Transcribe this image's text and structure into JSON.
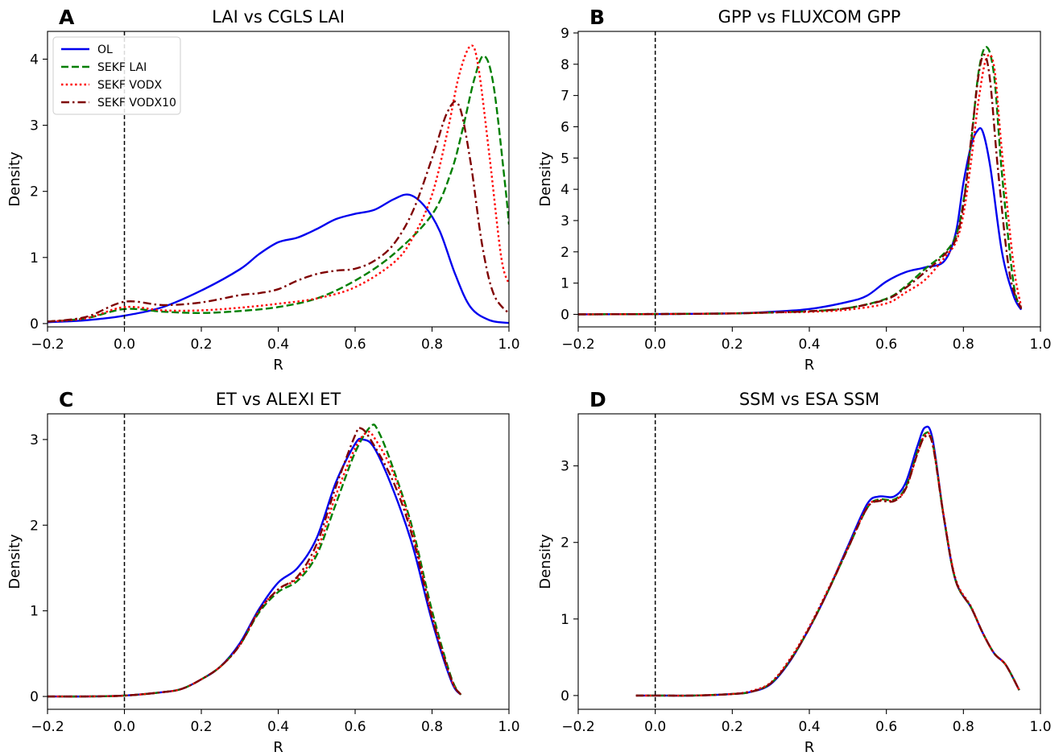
{
  "chart_data": [
    {
      "type": "line",
      "panel_letter": "A",
      "title": "LAI vs CGLS LAI",
      "xlabel": "R",
      "ylabel": "Density",
      "xlim": [
        -0.2,
        1.0
      ],
      "ylim": [
        -0.05,
        4.42
      ],
      "xticks": [
        -0.2,
        0.0,
        0.2,
        0.4,
        0.6,
        0.8,
        1.0
      ],
      "xtick_labels": [
        "−0.2",
        "0.0",
        "0.2",
        "0.4",
        "0.6",
        "0.8",
        "1.0"
      ],
      "yticks": [
        0,
        1,
        2,
        3,
        4
      ],
      "ytick_labels": [
        "0",
        "1",
        "2",
        "3",
        "4"
      ],
      "vline_x": 0.0,
      "grid": false,
      "legend": {
        "placement": "top-left",
        "entries": [
          "OL",
          "SEKF LAI",
          "SEKF VODX",
          "SEKF VODX10"
        ]
      },
      "series": [
        {
          "name": "OL",
          "color": "#0000ee",
          "style": "solid",
          "x": [
            -0.2,
            -0.1,
            0.0,
            0.1,
            0.2,
            0.3,
            0.35,
            0.4,
            0.45,
            0.5,
            0.55,
            0.6,
            0.65,
            0.7,
            0.74,
            0.78,
            0.82,
            0.86,
            0.9,
            0.95,
            1.0
          ],
          "y": [
            0.02,
            0.05,
            0.12,
            0.25,
            0.5,
            0.82,
            1.05,
            1.23,
            1.3,
            1.43,
            1.58,
            1.66,
            1.72,
            1.88,
            1.95,
            1.78,
            1.4,
            0.75,
            0.25,
            0.05,
            0.01
          ]
        },
        {
          "name": "SEKF LAI",
          "color": "#007f00",
          "style": "dashed",
          "x": [
            -0.2,
            -0.1,
            0.0,
            0.1,
            0.2,
            0.3,
            0.4,
            0.5,
            0.6,
            0.7,
            0.8,
            0.85,
            0.88,
            0.91,
            0.935,
            0.96,
            0.99,
            1.0
          ],
          "y": [
            0.03,
            0.08,
            0.22,
            0.18,
            0.16,
            0.19,
            0.25,
            0.38,
            0.65,
            1.05,
            1.65,
            2.3,
            2.95,
            3.7,
            4.05,
            3.6,
            2.1,
            1.5
          ]
        },
        {
          "name": "SEKF VODX",
          "color": "#ff0000",
          "style": "dotted",
          "x": [
            -0.2,
            -0.1,
            0.0,
            0.1,
            0.2,
            0.3,
            0.4,
            0.5,
            0.6,
            0.7,
            0.75,
            0.8,
            0.84,
            0.87,
            0.9,
            0.92,
            0.95,
            0.98,
            1.0
          ],
          "y": [
            0.03,
            0.08,
            0.25,
            0.2,
            0.2,
            0.24,
            0.3,
            0.38,
            0.55,
            0.92,
            1.3,
            1.95,
            2.9,
            3.75,
            4.2,
            3.9,
            2.5,
            1.0,
            0.6
          ]
        },
        {
          "name": "SEKF VODX10",
          "color": "#7f0000",
          "style": "dashdot",
          "x": [
            -0.2,
            -0.1,
            0.0,
            0.1,
            0.2,
            0.3,
            0.35,
            0.4,
            0.45,
            0.5,
            0.55,
            0.6,
            0.65,
            0.7,
            0.75,
            0.8,
            0.84,
            0.87,
            0.9,
            0.93,
            0.96,
            1.0
          ],
          "y": [
            0.03,
            0.1,
            0.33,
            0.28,
            0.32,
            0.43,
            0.46,
            0.52,
            0.65,
            0.75,
            0.8,
            0.83,
            0.95,
            1.2,
            1.7,
            2.5,
            3.2,
            3.3,
            2.45,
            1.2,
            0.45,
            0.15
          ]
        }
      ]
    },
    {
      "type": "line",
      "panel_letter": "B",
      "title": "GPP vs FLUXCOM GPP",
      "xlabel": "R",
      "ylabel": "Density",
      "xlim": [
        -0.2,
        1.0
      ],
      "ylim": [
        -0.4,
        9.05
      ],
      "xticks": [
        -0.2,
        0.0,
        0.2,
        0.4,
        0.6,
        0.8,
        1.0
      ],
      "xtick_labels": [
        "−0.2",
        "0.0",
        "0.2",
        "0.4",
        "0.6",
        "0.8",
        "1.0"
      ],
      "yticks": [
        0,
        1,
        2,
        3,
        4,
        5,
        6,
        7,
        8,
        9
      ],
      "ytick_labels": [
        "0",
        "1",
        "2",
        "3",
        "4",
        "5",
        "6",
        "7",
        "8",
        "9"
      ],
      "vline_x": 0.0,
      "grid": false,
      "series": [
        {
          "name": "OL",
          "color": "#0000ee",
          "style": "solid",
          "x": [
            -0.2,
            0.0,
            0.2,
            0.3,
            0.4,
            0.5,
            0.55,
            0.6,
            0.65,
            0.7,
            0.75,
            0.78,
            0.8,
            0.82,
            0.835,
            0.85,
            0.87,
            0.9,
            0.93,
            0.95
          ],
          "y": [
            0.0,
            0.01,
            0.03,
            0.08,
            0.17,
            0.4,
            0.6,
            1.05,
            1.35,
            1.5,
            1.7,
            2.6,
            4.2,
            5.4,
            5.85,
            5.85,
            4.7,
            2.0,
            0.6,
            0.15
          ]
        },
        {
          "name": "SEKF LAI",
          "color": "#007f00",
          "style": "dashed",
          "x": [
            -0.2,
            0.0,
            0.2,
            0.3,
            0.4,
            0.5,
            0.6,
            0.65,
            0.7,
            0.75,
            0.78,
            0.8,
            0.82,
            0.84,
            0.86,
            0.88,
            0.9,
            0.93,
            0.95
          ],
          "y": [
            0.0,
            0.01,
            0.03,
            0.06,
            0.1,
            0.2,
            0.5,
            0.9,
            1.45,
            1.95,
            2.5,
            3.6,
            5.5,
            7.8,
            8.55,
            7.6,
            4.5,
            1.0,
            0.2
          ]
        },
        {
          "name": "SEKF VODX",
          "color": "#ff0000",
          "style": "dotted",
          "x": [
            -0.2,
            0.0,
            0.2,
            0.3,
            0.4,
            0.5,
            0.6,
            0.65,
            0.7,
            0.75,
            0.78,
            0.8,
            0.82,
            0.84,
            0.86,
            0.88,
            0.9,
            0.93,
            0.95
          ],
          "y": [
            0.0,
            0.01,
            0.03,
            0.06,
            0.08,
            0.15,
            0.35,
            0.7,
            1.1,
            1.8,
            2.3,
            3.2,
            4.9,
            6.9,
            8.2,
            7.9,
            5.2,
            1.6,
            0.25
          ]
        },
        {
          "name": "SEKF VODX10",
          "color": "#7f0000",
          "style": "dashdot",
          "x": [
            -0.2,
            0.0,
            0.2,
            0.3,
            0.4,
            0.5,
            0.6,
            0.65,
            0.7,
            0.75,
            0.78,
            0.8,
            0.82,
            0.84,
            0.855,
            0.87,
            0.89,
            0.92,
            0.95
          ],
          "y": [
            0.0,
            0.01,
            0.03,
            0.06,
            0.1,
            0.2,
            0.48,
            0.85,
            1.35,
            1.9,
            2.4,
            3.5,
            5.6,
            7.7,
            8.3,
            7.4,
            4.6,
            1.3,
            0.18
          ]
        }
      ]
    },
    {
      "type": "line",
      "panel_letter": "C",
      "title": "ET vs ALEXI ET",
      "xlabel": "R",
      "ylabel": "Density",
      "xlim": [
        -0.2,
        1.0
      ],
      "ylim": [
        -0.15,
        3.3
      ],
      "xticks": [
        -0.2,
        0.0,
        0.2,
        0.4,
        0.6,
        0.8,
        1.0
      ],
      "xtick_labels": [
        "−0.2",
        "0.0",
        "0.2",
        "0.4",
        "0.6",
        "0.8",
        "1.0"
      ],
      "yticks": [
        0,
        1,
        2,
        3
      ],
      "ytick_labels": [
        "0",
        "1",
        "2",
        "3"
      ],
      "vline_x": 0.0,
      "grid": false,
      "series": [
        {
          "name": "OL",
          "color": "#0000ee",
          "style": "solid",
          "x": [
            -0.2,
            -0.1,
            0.0,
            0.1,
            0.15,
            0.2,
            0.25,
            0.3,
            0.35,
            0.4,
            0.45,
            0.5,
            0.55,
            0.6,
            0.62,
            0.65,
            0.7,
            0.75,
            0.8,
            0.85,
            0.875
          ],
          "y": [
            0.0,
            0.0,
            0.01,
            0.05,
            0.09,
            0.2,
            0.35,
            0.62,
            1.02,
            1.33,
            1.5,
            1.85,
            2.5,
            2.95,
            3.0,
            2.9,
            2.4,
            1.75,
            0.88,
            0.18,
            0.02
          ]
        },
        {
          "name": "SEKF LAI",
          "color": "#007f00",
          "style": "dashed",
          "x": [
            -0.2,
            -0.1,
            0.0,
            0.1,
            0.15,
            0.2,
            0.25,
            0.3,
            0.35,
            0.4,
            0.45,
            0.5,
            0.55,
            0.6,
            0.64,
            0.66,
            0.7,
            0.75,
            0.8,
            0.85,
            0.875
          ],
          "y": [
            0.0,
            0.0,
            0.01,
            0.05,
            0.09,
            0.2,
            0.35,
            0.6,
            0.98,
            1.22,
            1.35,
            1.65,
            2.25,
            2.85,
            3.15,
            3.1,
            2.65,
            1.95,
            1.0,
            0.22,
            0.02
          ]
        },
        {
          "name": "SEKF VODX",
          "color": "#ff0000",
          "style": "dotted",
          "x": [
            -0.2,
            -0.1,
            0.0,
            0.1,
            0.15,
            0.2,
            0.25,
            0.3,
            0.35,
            0.4,
            0.45,
            0.5,
            0.55,
            0.6,
            0.63,
            0.65,
            0.7,
            0.75,
            0.8,
            0.85,
            0.875
          ],
          "y": [
            0.0,
            0.0,
            0.01,
            0.05,
            0.09,
            0.2,
            0.35,
            0.6,
            1.0,
            1.25,
            1.38,
            1.7,
            2.35,
            2.9,
            3.08,
            3.02,
            2.6,
            1.9,
            0.95,
            0.2,
            0.02
          ]
        },
        {
          "name": "SEKF VODX10",
          "color": "#7f0000",
          "style": "dashdot",
          "x": [
            -0.2,
            -0.1,
            0.0,
            0.1,
            0.15,
            0.2,
            0.25,
            0.3,
            0.35,
            0.4,
            0.45,
            0.5,
            0.55,
            0.6,
            0.615,
            0.64,
            0.7,
            0.75,
            0.8,
            0.85,
            0.875
          ],
          "y": [
            0.0,
            0.0,
            0.01,
            0.05,
            0.09,
            0.2,
            0.35,
            0.6,
            1.0,
            1.25,
            1.4,
            1.78,
            2.45,
            3.05,
            3.13,
            3.0,
            2.5,
            1.85,
            0.92,
            0.2,
            0.02
          ]
        }
      ]
    },
    {
      "type": "line",
      "panel_letter": "D",
      "title": "SSM vs ESA SSM",
      "xlabel": "R",
      "ylabel": "Density",
      "xlim": [
        -0.2,
        1.0
      ],
      "ylim": [
        -0.18,
        3.68
      ],
      "xticks": [
        -0.2,
        0.0,
        0.2,
        0.4,
        0.6,
        0.8,
        1.0
      ],
      "xtick_labels": [
        "−0.2",
        "0.0",
        "0.2",
        "0.4",
        "0.6",
        "0.8",
        "1.0"
      ],
      "yticks": [
        0,
        1,
        2,
        3
      ],
      "ytick_labels": [
        "0",
        "1",
        "2",
        "3"
      ],
      "vline_x": 0.0,
      "grid": false,
      "series": [
        {
          "name": "OL",
          "color": "#0000ee",
          "style": "solid",
          "x": [
            -0.05,
            0.0,
            0.1,
            0.2,
            0.25,
            0.3,
            0.35,
            0.4,
            0.45,
            0.5,
            0.55,
            0.58,
            0.62,
            0.65,
            0.68,
            0.7,
            0.72,
            0.75,
            0.78,
            0.82,
            0.85,
            0.88,
            0.91,
            0.945
          ],
          "y": [
            0.0,
            0.0,
            0.0,
            0.02,
            0.05,
            0.15,
            0.45,
            0.88,
            1.38,
            1.95,
            2.5,
            2.6,
            2.6,
            2.78,
            3.25,
            3.5,
            3.35,
            2.3,
            1.5,
            1.15,
            0.82,
            0.55,
            0.4,
            0.07
          ]
        },
        {
          "name": "SEKF LAI",
          "color": "#007f00",
          "style": "dashed",
          "x": [
            -0.05,
            0.0,
            0.1,
            0.2,
            0.25,
            0.3,
            0.35,
            0.4,
            0.45,
            0.5,
            0.55,
            0.58,
            0.62,
            0.65,
            0.68,
            0.7,
            0.72,
            0.75,
            0.78,
            0.82,
            0.85,
            0.88,
            0.91,
            0.945
          ],
          "y": [
            0.0,
            0.0,
            0.0,
            0.02,
            0.05,
            0.16,
            0.46,
            0.88,
            1.38,
            1.92,
            2.45,
            2.56,
            2.56,
            2.72,
            3.18,
            3.42,
            3.3,
            2.3,
            1.5,
            1.15,
            0.82,
            0.55,
            0.4,
            0.07
          ]
        },
        {
          "name": "SEKF VODX",
          "color": "#ff0000",
          "style": "dotted",
          "x": [
            -0.05,
            0.0,
            0.1,
            0.2,
            0.25,
            0.3,
            0.35,
            0.4,
            0.45,
            0.5,
            0.55,
            0.58,
            0.62,
            0.65,
            0.68,
            0.7,
            0.72,
            0.75,
            0.78,
            0.82,
            0.85,
            0.88,
            0.91,
            0.945
          ],
          "y": [
            0.0,
            0.0,
            0.0,
            0.02,
            0.06,
            0.17,
            0.48,
            0.9,
            1.4,
            1.93,
            2.46,
            2.55,
            2.55,
            2.7,
            3.15,
            3.4,
            3.3,
            2.32,
            1.52,
            1.16,
            0.82,
            0.55,
            0.4,
            0.07
          ]
        },
        {
          "name": "SEKF VODX10",
          "color": "#7f0000",
          "style": "dashdot",
          "x": [
            -0.05,
            0.0,
            0.1,
            0.2,
            0.25,
            0.3,
            0.35,
            0.4,
            0.45,
            0.5,
            0.55,
            0.58,
            0.62,
            0.65,
            0.68,
            0.7,
            0.72,
            0.75,
            0.78,
            0.82,
            0.85,
            0.88,
            0.91,
            0.945
          ],
          "y": [
            0.0,
            0.0,
            0.0,
            0.02,
            0.05,
            0.16,
            0.46,
            0.88,
            1.38,
            1.92,
            2.45,
            2.54,
            2.54,
            2.7,
            3.15,
            3.38,
            3.28,
            2.3,
            1.5,
            1.15,
            0.82,
            0.55,
            0.4,
            0.07
          ]
        }
      ]
    }
  ]
}
